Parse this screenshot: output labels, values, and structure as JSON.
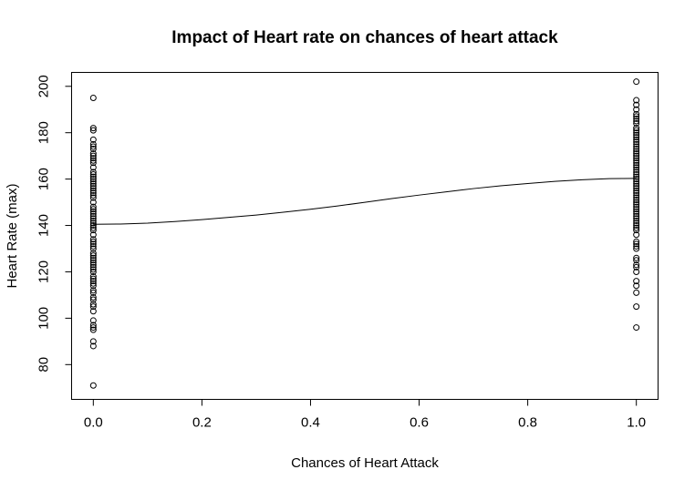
{
  "chart_data": {
    "type": "scatter",
    "title": "Impact of Heart rate on chances of heart attack",
    "xlabel": "Chances of Heart Attack",
    "ylabel": "Heart Rate (max)",
    "xlim": [
      -0.04,
      1.04
    ],
    "ylim": [
      65,
      206
    ],
    "x_ticks": [
      0.0,
      0.2,
      0.4,
      0.6,
      0.8,
      1.0
    ],
    "x_tick_labels": [
      "0.0",
      "0.2",
      "0.4",
      "0.6",
      "0.8",
      "1.0"
    ],
    "y_ticks": [
      80,
      100,
      120,
      140,
      160,
      180,
      200
    ],
    "y_tick_labels": [
      "80",
      "100",
      "120",
      "140",
      "160",
      "180",
      "200"
    ],
    "grid": false,
    "series": [
      {
        "x_value": 0,
        "y": [
          71,
          88,
          90,
          95,
          96,
          97,
          99,
          103,
          105,
          106,
          108,
          109,
          111,
          112,
          114,
          115,
          116,
          117,
          118,
          120,
          121,
          122,
          123,
          124,
          125,
          126,
          127,
          128,
          130,
          131,
          132,
          133,
          134,
          136,
          138,
          139,
          140,
          141,
          142,
          143,
          144,
          145,
          146,
          147,
          148,
          150,
          152,
          153,
          154,
          155,
          156,
          157,
          158,
          159,
          160,
          161,
          162,
          163,
          165,
          167,
          168,
          169,
          170,
          171,
          173,
          174,
          175,
          177,
          181,
          182,
          195
        ]
      },
      {
        "x_value": 1,
        "y": [
          96,
          105,
          111,
          114,
          116,
          120,
          122,
          123,
          125,
          126,
          130,
          131,
          132,
          133,
          136,
          138,
          139,
          140,
          141,
          142,
          143,
          144,
          145,
          146,
          147,
          148,
          149,
          150,
          151,
          152,
          153,
          154,
          155,
          156,
          157,
          158,
          159,
          160,
          161,
          162,
          163,
          164,
          165,
          166,
          167,
          168,
          169,
          170,
          171,
          172,
          173,
          174,
          175,
          176,
          177,
          178,
          179,
          180,
          181,
          182,
          184,
          185,
          186,
          187,
          188,
          190,
          192,
          194,
          202
        ]
      }
    ],
    "trend_line": {
      "x": [
        0.0,
        0.05,
        0.1,
        0.15,
        0.2,
        0.25,
        0.3,
        0.35,
        0.4,
        0.45,
        0.5,
        0.55,
        0.6,
        0.65,
        0.7,
        0.75,
        0.8,
        0.85,
        0.9,
        0.95,
        1.0
      ],
      "y": [
        140.5,
        140.6,
        141.0,
        141.7,
        142.5,
        143.5,
        144.5,
        145.7,
        147.0,
        148.4,
        150.0,
        151.6,
        153.1,
        154.5,
        155.9,
        157.1,
        158.1,
        159.0,
        159.7,
        160.2,
        160.3
      ]
    }
  }
}
